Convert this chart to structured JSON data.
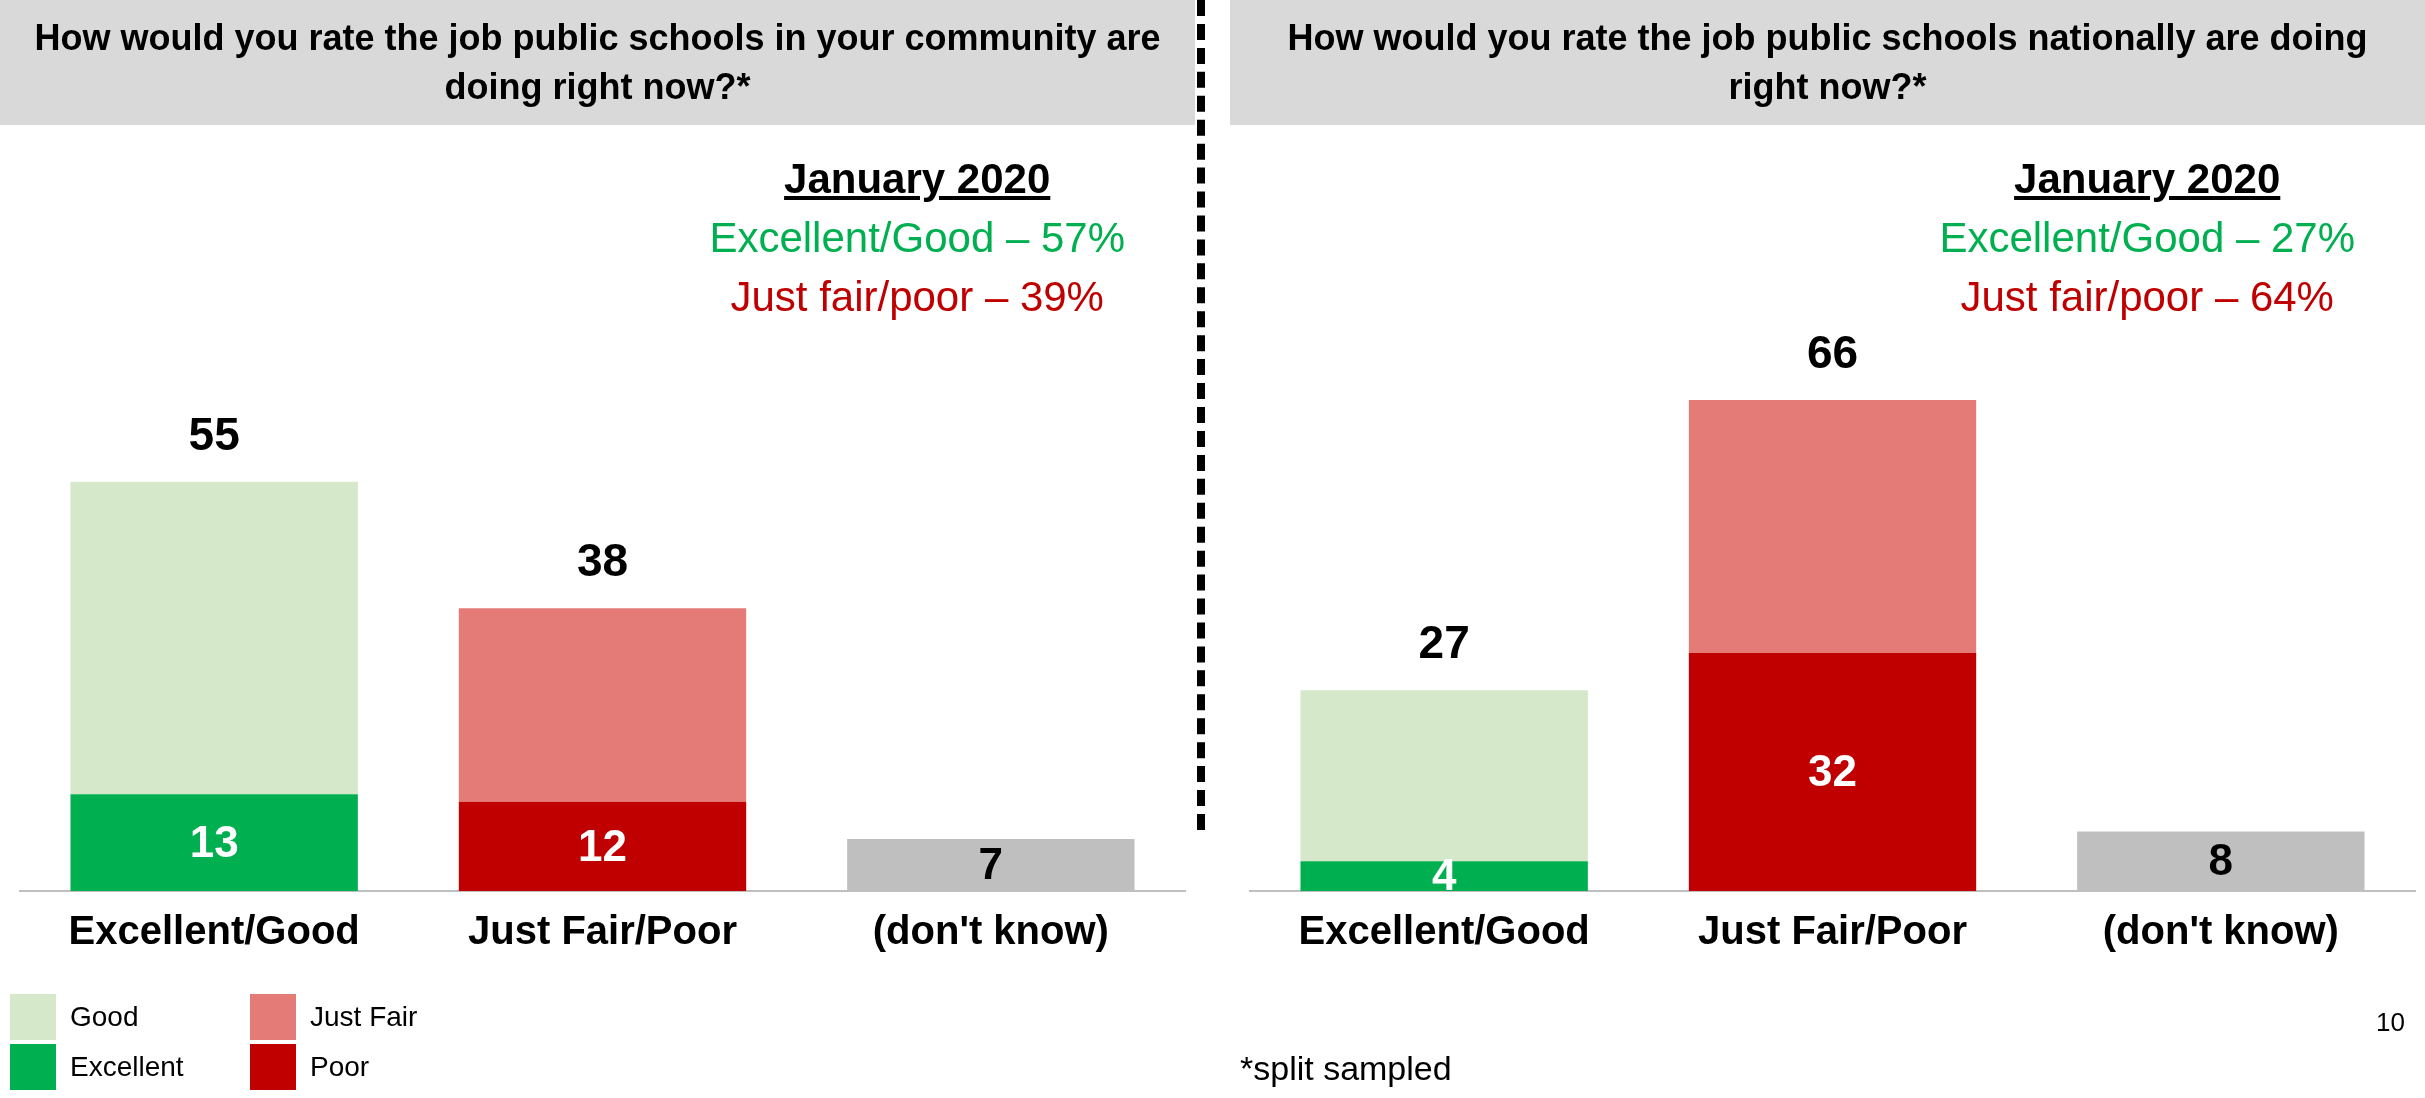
{
  "chart_data": [
    {
      "type": "bar",
      "title": "How would you rate the job public schools in your community are doing right now?*",
      "categories": [
        "Excellent/Good",
        "Just Fair/Poor",
        "(don't know)"
      ],
      "stacked": true,
      "legend": "bottom left",
      "series": [
        {
          "name": "Excellent",
          "color": "#00b050",
          "values": [
            13,
            null,
            null
          ],
          "value_labels": [
            "13",
            null,
            null
          ]
        },
        {
          "name": "Good",
          "color": "#d5e8c9",
          "values": [
            42,
            null,
            null
          ]
        },
        {
          "name": "Poor",
          "color": "#c00000",
          "values": [
            null,
            12,
            null
          ],
          "value_labels": [
            null,
            "12",
            null
          ]
        },
        {
          "name": "Just Fair",
          "color": "#e57b77",
          "values": [
            null,
            26,
            null
          ]
        },
        {
          "color": "#bfbfbf",
          "values": [
            null,
            null,
            7
          ],
          "value_labels": [
            null,
            null,
            "7"
          ]
        }
      ],
      "totals": [
        "55",
        "38",
        null
      ],
      "annotations": [
        "January 2020",
        "Excellent/Good – 57%",
        "Just fair/poor – 39%"
      ]
    },
    {
      "type": "bar",
      "title": "How would you rate the job public schools nationally are doing right now?*",
      "categories": [
        "Excellent/Good",
        "Just Fair/Poor",
        "(don't know)"
      ],
      "stacked": true,
      "series": [
        {
          "color": "#00b050",
          "values": [
            4,
            null,
            null
          ],
          "value_labels": [
            "4",
            null,
            null
          ]
        },
        {
          "color": "#d5e8c9",
          "values": [
            23,
            null,
            null
          ]
        },
        {
          "color": "#c00000",
          "values": [
            null,
            32,
            null
          ],
          "value_labels": [
            null,
            "32",
            null
          ]
        },
        {
          "color": "#e57b77",
          "values": [
            null,
            34,
            null
          ]
        },
        {
          "color": "#bfbfbf",
          "values": [
            null,
            null,
            8
          ],
          "value_labels": [
            null,
            null,
            "8"
          ]
        }
      ],
      "totals": [
        "27",
        "66",
        null
      ],
      "annotations": [
        "January 2020",
        "Excellent/Good – 27%",
        "Just fair/poor – 64%",
        "*split sampled",
        "10"
      ]
    }
  ]
}
